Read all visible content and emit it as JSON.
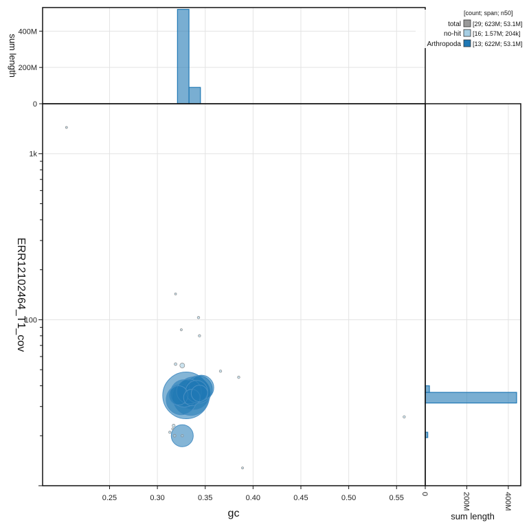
{
  "chart_data": {
    "type": "scatter",
    "x_label": "gc",
    "y_label": "ERR12102464_T1_cov",
    "top_hist_label": "sum length",
    "right_hist_label": "sum length",
    "x_ticks": [
      "0.25",
      "0.30",
      "0.35",
      "0.40",
      "0.45",
      "0.50",
      "0.55"
    ],
    "x_tick_values": [
      0.25,
      0.3,
      0.35,
      0.4,
      0.45,
      0.5,
      0.55
    ],
    "xlim": [
      0.18,
      0.58
    ],
    "y_scale": "log",
    "ylim": [
      10,
      2000
    ],
    "y_ticks": [
      "1k",
      "100"
    ],
    "y_tick_values": [
      1000,
      100
    ],
    "top_hist_ticks": [
      "0",
      "200M",
      "400M"
    ],
    "top_hist_tick_values": [
      0,
      200,
      400
    ],
    "top_hist_max": 530,
    "right_hist_ticks": [
      "0",
      "200M",
      "400M"
    ],
    "right_hist_tick_values": [
      0,
      200,
      400
    ],
    "right_hist_max": 460,
    "legend": {
      "header": "[count; span; n50]",
      "entries": [
        {
          "name": "total",
          "stats": "[29; 623M; 53.1M]",
          "color": "#999999"
        },
        {
          "name": "no-hit",
          "stats": "[16; 1.57M; 204k]",
          "color": "#a6cee3"
        },
        {
          "name": "Arthropoda",
          "stats": "[13; 622M; 53.1M]",
          "color": "#1f78b4"
        }
      ]
    },
    "grid": true,
    "points": [
      {
        "gc": 0.205,
        "cov": 1440,
        "r": 1.5,
        "group": "no-hit"
      },
      {
        "gc": 0.319,
        "cov": 143,
        "r": 1.5,
        "group": "no-hit"
      },
      {
        "gc": 0.343,
        "cov": 103,
        "r": 1.8,
        "group": "no-hit"
      },
      {
        "gc": 0.325,
        "cov": 87,
        "r": 1.5,
        "group": "no-hit"
      },
      {
        "gc": 0.344,
        "cov": 80,
        "r": 1.8,
        "group": "no-hit"
      },
      {
        "gc": 0.319,
        "cov": 54,
        "r": 2,
        "group": "no-hit"
      },
      {
        "gc": 0.326,
        "cov": 53,
        "r": 3.5,
        "group": "no-hit"
      },
      {
        "gc": 0.366,
        "cov": 49,
        "r": 1.8,
        "group": "no-hit"
      },
      {
        "gc": 0.385,
        "cov": 45,
        "r": 1.8,
        "group": "no-hit"
      },
      {
        "gc": 0.317,
        "cov": 23,
        "r": 2.2,
        "group": "no-hit"
      },
      {
        "gc": 0.313,
        "cov": 21,
        "r": 1.8,
        "group": "no-hit"
      },
      {
        "gc": 0.318,
        "cov": 20,
        "r": 2,
        "group": "no-hit"
      },
      {
        "gc": 0.326,
        "cov": 20,
        "r": 1.8,
        "group": "no-hit"
      },
      {
        "gc": 0.389,
        "cov": 12.8,
        "r": 1.5,
        "group": "no-hit"
      },
      {
        "gc": 0.558,
        "cov": 26,
        "r": 1.8,
        "group": "no-hit"
      },
      {
        "gc": 0.316,
        "cov": 22,
        "r": 1.5,
        "group": "no-hit"
      },
      {
        "gc": 0.33,
        "cov": 35,
        "r": 34,
        "group": "Arthropoda"
      },
      {
        "gc": 0.338,
        "cov": 36,
        "r": 24,
        "group": "Arthropoda"
      },
      {
        "gc": 0.343,
        "cov": 38,
        "r": 20,
        "group": "Arthropoda"
      },
      {
        "gc": 0.346,
        "cov": 39,
        "r": 18,
        "group": "Arthropoda"
      },
      {
        "gc": 0.325,
        "cov": 33,
        "r": 22,
        "group": "Arthropoda"
      },
      {
        "gc": 0.335,
        "cov": 34,
        "r": 26,
        "group": "Arthropoda"
      },
      {
        "gc": 0.341,
        "cov": 37,
        "r": 16,
        "group": "Arthropoda"
      },
      {
        "gc": 0.328,
        "cov": 36,
        "r": 20,
        "group": "Arthropoda"
      },
      {
        "gc": 0.322,
        "cov": 35,
        "r": 14,
        "group": "Arthropoda"
      },
      {
        "gc": 0.333,
        "cov": 37,
        "r": 18,
        "group": "Arthropoda"
      },
      {
        "gc": 0.326,
        "cov": 20,
        "r": 16,
        "group": "Arthropoda"
      },
      {
        "gc": 0.336,
        "cov": 34,
        "r": 12,
        "group": "Arthropoda"
      },
      {
        "gc": 0.344,
        "cov": 36,
        "r": 12,
        "group": "Arthropoda"
      }
    ],
    "top_hist_bins": [
      {
        "gc_start": 0.321,
        "gc_end": 0.333,
        "value": 520
      },
      {
        "gc_start": 0.333,
        "gc_end": 0.345,
        "value": 90
      }
    ],
    "right_hist_bins": [
      {
        "cov_start": 36.5,
        "cov_end": 40,
        "value": 20
      },
      {
        "cov_start": 31.5,
        "cov_end": 36.5,
        "value": 440
      },
      {
        "cov_start": 19.5,
        "cov_end": 21,
        "value": 12
      }
    ]
  }
}
